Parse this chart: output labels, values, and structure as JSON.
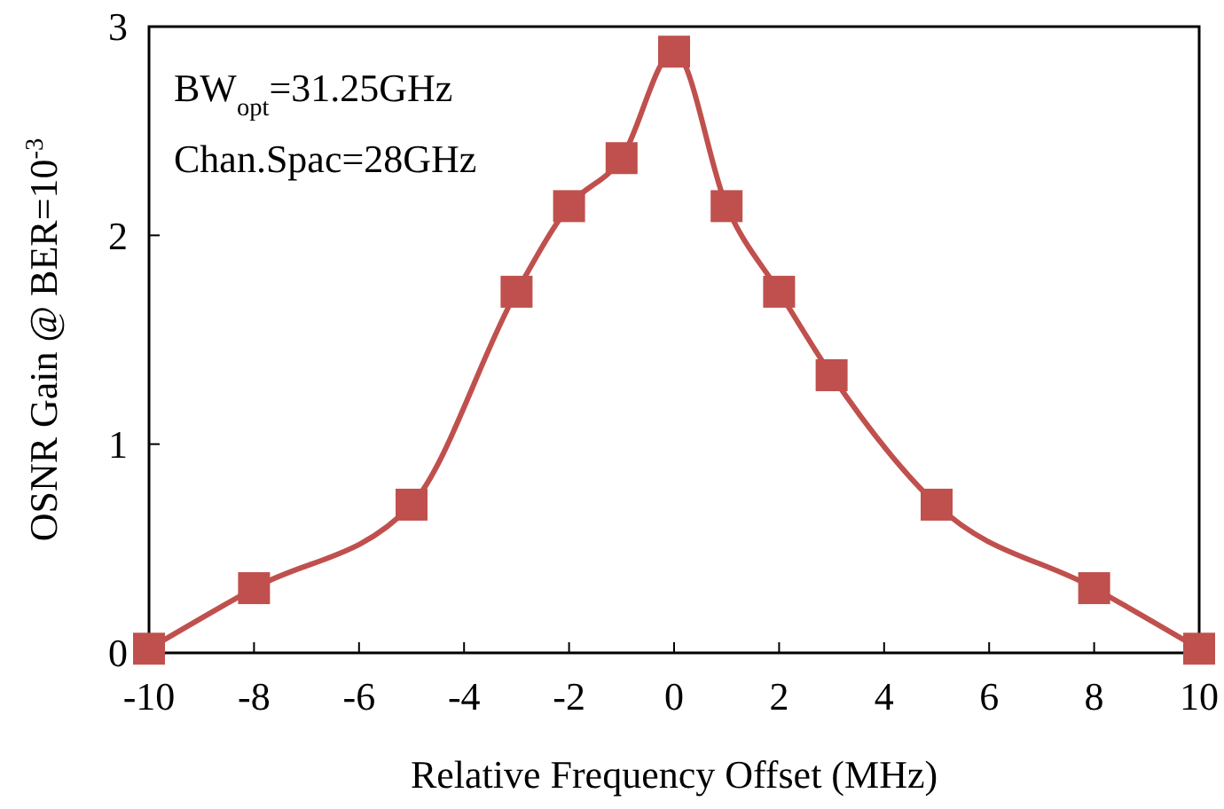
{
  "chart_data": {
    "type": "line",
    "xlabel": "Relative Frequency Offset (MHz)",
    "ylabel": "OSNR Gain @ BER=10$^{-3}$",
    "x": [
      -10,
      -8,
      -5,
      -3,
      -2,
      -1,
      0,
      1,
      2,
      3,
      5,
      8,
      10
    ],
    "series": [
      {
        "color": "#c0504d",
        "values": [
          0.02,
          0.31,
          0.71,
          1.73,
          2.14,
          2.37,
          2.88,
          2.14,
          1.73,
          1.33,
          0.71,
          0.31,
          0.02
        ]
      }
    ],
    "xlim": [
      -10,
      10
    ],
    "xticks": [
      -10,
      -8,
      -6,
      -4,
      -2,
      0,
      2,
      4,
      6,
      8,
      10
    ],
    "ylim": [
      0,
      3
    ],
    "yticks": [
      0,
      1,
      2,
      3
    ],
    "marker": "square",
    "line_style": "solid",
    "grid": false,
    "annotations": [
      "BW$_{opt}$=31.25GHz",
      "Chan.Spac=28GHz"
    ]
  }
}
